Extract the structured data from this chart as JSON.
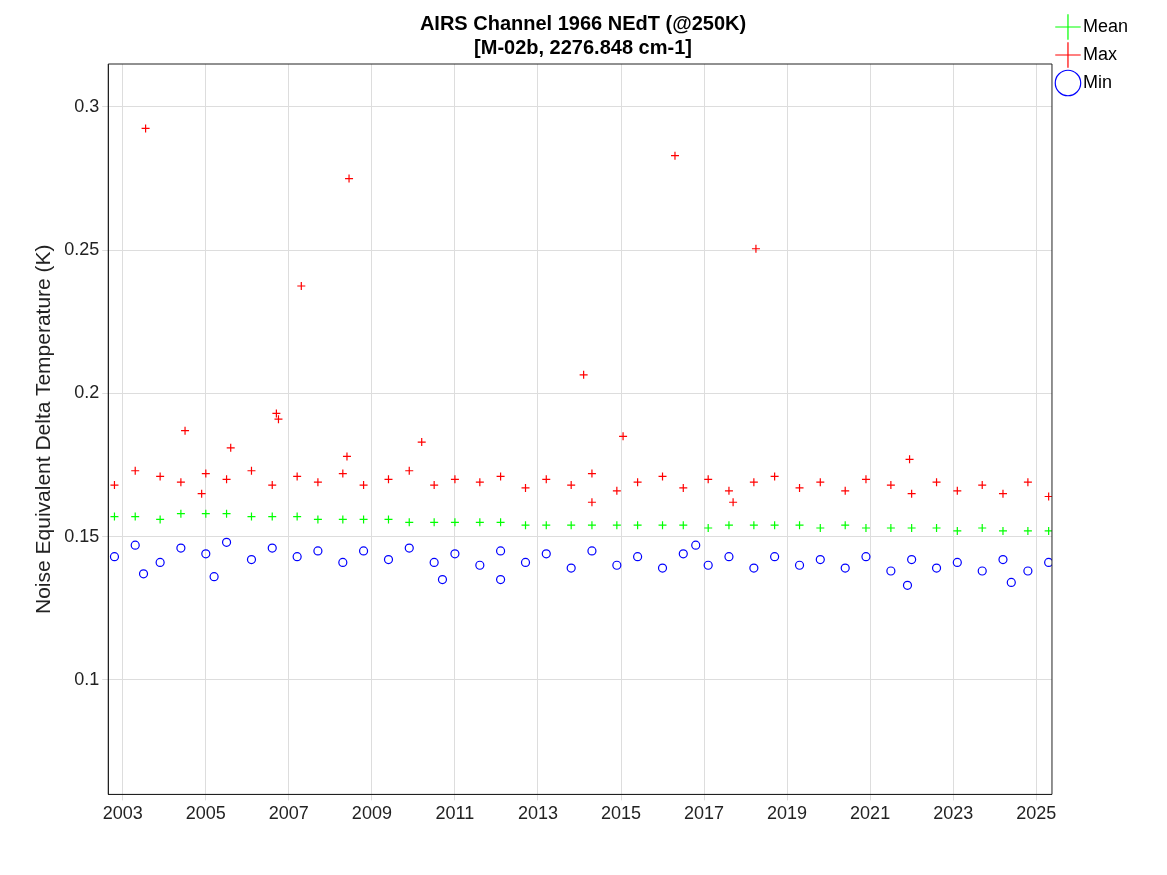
{
  "chart_data": {
    "type": "scatter",
    "title": "AIRS Channel 1966 NEdT (@250K)\n[M-02b, 2276.848 cm-1]",
    "ylabel": "Noise Equivalent Delta Temperature (K)",
    "xlim": [
      2002.65,
      2025.38
    ],
    "xticks": [
      2003,
      2005,
      2007,
      2009,
      2011,
      2013,
      2015,
      2017,
      2019,
      2021,
      2023,
      2025
    ],
    "ylim": [
      0.06,
      0.315
    ],
    "yticks": [
      0.1,
      0.15,
      0.2,
      0.25,
      0.3
    ],
    "grid": true,
    "legend": "top right",
    "series": [
      {
        "name": "Mean",
        "color": "#00ff00",
        "marker": "cross",
        "x": [
          2002.8,
          2003.3,
          2003.9,
          2004.4,
          2005.0,
          2005.5,
          2006.1,
          2006.6,
          2007.2,
          2007.7,
          2008.3,
          2008.8,
          2009.4,
          2009.9,
          2010.5,
          2011.0,
          2011.6,
          2012.1,
          2012.7,
          2013.2,
          2013.8,
          2014.3,
          2014.9,
          2015.4,
          2016.0,
          2016.5,
          2017.1,
          2017.6,
          2018.2,
          2018.7,
          2019.3,
          2019.8,
          2020.4,
          2020.9,
          2021.5,
          2022.0,
          2022.6,
          2023.1,
          2023.7,
          2024.2,
          2024.8,
          2025.3
        ],
        "values": [
          0.157,
          0.157,
          0.156,
          0.158,
          0.158,
          0.158,
          0.157,
          0.157,
          0.157,
          0.156,
          0.156,
          0.156,
          0.156,
          0.155,
          0.155,
          0.155,
          0.155,
          0.155,
          0.154,
          0.154,
          0.154,
          0.154,
          0.154,
          0.154,
          0.154,
          0.154,
          0.153,
          0.154,
          0.154,
          0.154,
          0.154,
          0.153,
          0.154,
          0.153,
          0.153,
          0.153,
          0.153,
          0.152,
          0.153,
          0.152,
          0.152,
          0.152
        ]
      },
      {
        "name": "Max",
        "color": "#ff0000",
        "marker": "cross",
        "x": [
          2002.8,
          2003.3,
          2003.9,
          2004.4,
          2005.0,
          2005.5,
          2006.1,
          2006.6,
          2007.2,
          2007.7,
          2008.3,
          2008.8,
          2009.4,
          2009.9,
          2010.5,
          2011.0,
          2011.6,
          2012.1,
          2012.7,
          2013.2,
          2013.8,
          2014.3,
          2014.9,
          2015.4,
          2016.0,
          2016.5,
          2017.1,
          2017.6,
          2018.2,
          2018.7,
          2019.3,
          2019.8,
          2020.4,
          2020.9,
          2021.5,
          2022.0,
          2022.6,
          2023.1,
          2023.7,
          2024.2,
          2024.8,
          2025.3,
          2003.55,
          2004.5,
          2005.6,
          2006.7,
          2006.75,
          2007.3,
          2008.4,
          2008.45,
          2010.2,
          2014.1,
          2015.05,
          2016.3,
          2018.25,
          2021.95,
          2004.9,
          2014.3,
          2017.7
        ],
        "values": [
          0.168,
          0.173,
          0.171,
          0.169,
          0.172,
          0.17,
          0.173,
          0.168,
          0.171,
          0.169,
          0.172,
          0.168,
          0.17,
          0.173,
          0.168,
          0.17,
          0.169,
          0.171,
          0.167,
          0.17,
          0.168,
          0.172,
          0.166,
          0.169,
          0.171,
          0.167,
          0.17,
          0.166,
          0.169,
          0.171,
          0.167,
          0.169,
          0.166,
          0.17,
          0.168,
          0.165,
          0.169,
          0.166,
          0.168,
          0.165,
          0.169,
          0.164,
          0.2925,
          0.187,
          0.181,
          0.193,
          0.191,
          0.2375,
          0.178,
          0.275,
          0.183,
          0.2065,
          0.185,
          0.283,
          0.2505,
          0.177,
          0.165,
          0.162,
          0.162
        ]
      },
      {
        "name": "Min",
        "color": "#0000ff",
        "marker": "circle",
        "x": [
          2002.8,
          2003.3,
          2003.9,
          2004.4,
          2005.0,
          2005.5,
          2006.1,
          2006.6,
          2007.2,
          2007.7,
          2008.3,
          2008.8,
          2009.4,
          2009.9,
          2010.5,
          2011.0,
          2011.6,
          2012.1,
          2012.7,
          2013.2,
          2013.8,
          2014.3,
          2014.9,
          2015.4,
          2016.0,
          2016.5,
          2017.1,
          2017.6,
          2018.2,
          2018.7,
          2019.3,
          2019.8,
          2020.4,
          2020.9,
          2021.5,
          2022.0,
          2022.6,
          2023.1,
          2023.7,
          2024.2,
          2024.8,
          2025.3,
          2003.5,
          2005.2,
          2010.7,
          2016.8,
          2021.9,
          2024.4,
          2012.1
        ],
        "values": [
          0.143,
          0.147,
          0.141,
          0.146,
          0.144,
          0.148,
          0.142,
          0.146,
          0.143,
          0.145,
          0.141,
          0.145,
          0.142,
          0.146,
          0.141,
          0.144,
          0.14,
          0.145,
          0.141,
          0.144,
          0.139,
          0.145,
          0.14,
          0.143,
          0.139,
          0.144,
          0.14,
          0.143,
          0.139,
          0.143,
          0.14,
          0.142,
          0.139,
          0.143,
          0.138,
          0.142,
          0.139,
          0.141,
          0.138,
          0.142,
          0.138,
          0.141,
          0.137,
          0.136,
          0.135,
          0.147,
          0.133,
          0.134,
          0.135
        ]
      }
    ]
  }
}
